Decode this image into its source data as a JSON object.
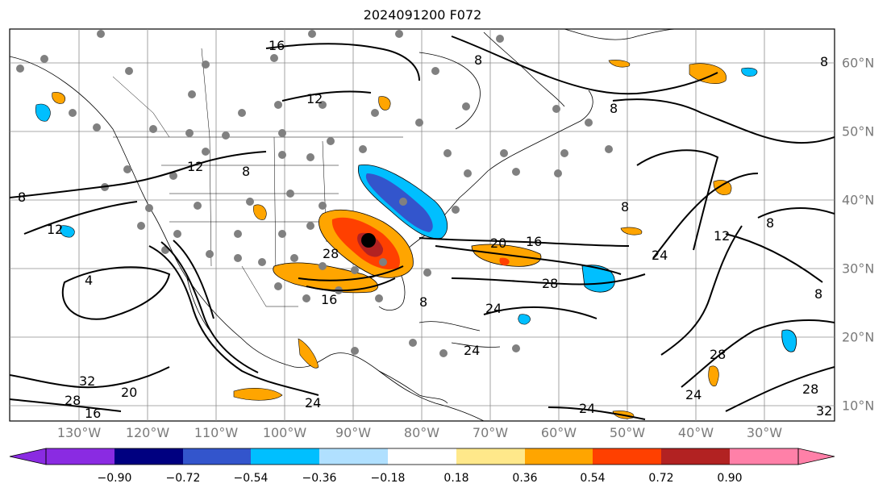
{
  "title": "2024091200 F072",
  "longitude_labels": [
    "130°W",
    "120°W",
    "110°W",
    "100°W",
    "90°W",
    "80°W",
    "70°W",
    "60°W",
    "50°W",
    "40°W",
    "30°W"
  ],
  "latitude_labels": [
    "60°N",
    "50°N",
    "40°N",
    "30°N",
    "20°N",
    "10°N"
  ],
  "contour_labels": [
    "16",
    "12",
    "12",
    "8",
    "8",
    "12",
    "4",
    "8",
    "8",
    "8",
    "20",
    "16",
    "28",
    "24",
    "12",
    "16",
    "8",
    "28",
    "24",
    "24",
    "32",
    "28",
    "20",
    "16",
    "24",
    "24",
    "28",
    "24",
    "28",
    "32",
    "8",
    "8",
    "8"
  ],
  "colorbar": {
    "tick_labels": [
      "−0.90",
      "−0.72",
      "−0.54",
      "−0.36",
      "−0.18",
      "0.18",
      "0.36",
      "0.54",
      "0.72",
      "0.90"
    ],
    "colors": [
      "#8a2be2",
      "#000080",
      "#3355cc",
      "#00bfff",
      "#b0e0ff",
      "#ffffff",
      "#ffe88a",
      "#ffa500",
      "#ff4000",
      "#b22222",
      "#ff80a8"
    ]
  },
  "colors": {
    "land": "#ffffff",
    "grid": "#8c8c8c",
    "contour": "#000000",
    "station": "#808080"
  }
}
